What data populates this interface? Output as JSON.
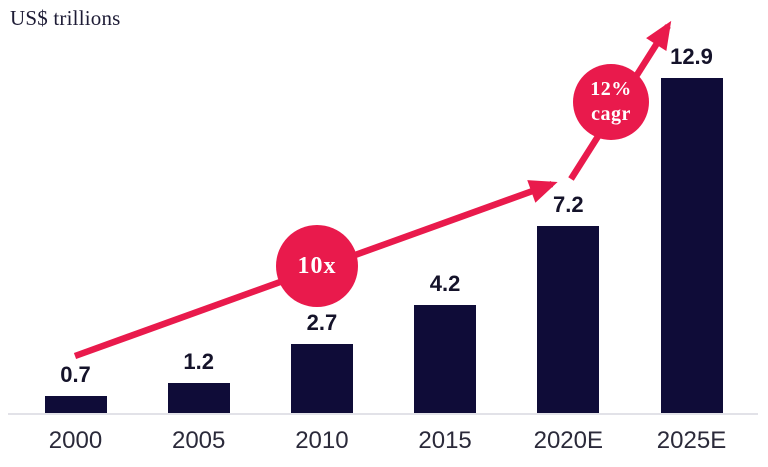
{
  "title": "US$ trillions",
  "chart_data": {
    "type": "bar",
    "title": "US$ trillions",
    "categories": [
      "2000",
      "2005",
      "2010",
      "2015",
      "2020E",
      "2025E"
    ],
    "values": [
      0.7,
      1.2,
      2.7,
      4.2,
      7.2,
      12.9
    ],
    "value_labels": [
      "0.7",
      "1.2",
      "2.7",
      "4.2",
      "7.2",
      "12.9"
    ],
    "xlabel": "",
    "ylabel": "US$ trillions",
    "ylim": [
      0,
      12.9
    ],
    "grid": false,
    "legend": "none",
    "annotations": [
      {
        "type": "circle-badge",
        "text": "10x",
        "meaning": "10x growth from 2000 to 2020E"
      },
      {
        "type": "circle-badge",
        "text": "12% cagr",
        "meaning": "12% CAGR from 2020E to 2025E"
      },
      {
        "type": "arrow",
        "from": "2000 bar",
        "to": "2020E bar"
      },
      {
        "type": "arrow",
        "from": "2020E bar",
        "to": "above 2025E bar"
      }
    ]
  },
  "badges": {
    "multiplier": {
      "label": "10x"
    },
    "cagr": {
      "line1": "12%",
      "line2": "cagr"
    }
  },
  "colors": {
    "bar": "#0f0c38",
    "accent": "#e91a4c",
    "axis": "#e2e2e8",
    "value_label": "#15132a",
    "tick_label": "#2b2a3a",
    "title": "#1e1c36"
  }
}
